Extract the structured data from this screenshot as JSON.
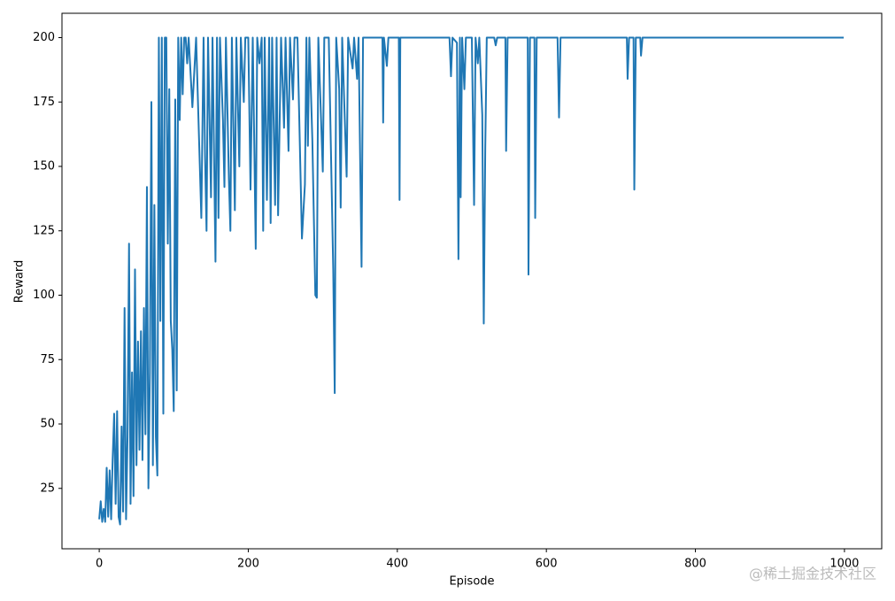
{
  "chart_data": {
    "type": "line",
    "xlabel": "Episode",
    "ylabel": "Reward",
    "watermark": "@稀土掘金技术社区",
    "xlim": [
      -50,
      1050
    ],
    "ylim": [
      1.55,
      209.45
    ],
    "xticks": [
      0,
      200,
      400,
      600,
      800,
      1000
    ],
    "yticks": [
      25,
      50,
      75,
      100,
      125,
      150,
      175,
      200
    ],
    "x": [
      0,
      2,
      4,
      6,
      8,
      10,
      12,
      14,
      16,
      18,
      20,
      22,
      24,
      26,
      28,
      30,
      32,
      34,
      36,
      38,
      40,
      42,
      44,
      46,
      48,
      50,
      52,
      54,
      56,
      58,
      60,
      62,
      64,
      66,
      68,
      70,
      72,
      74,
      76,
      78,
      80,
      82,
      84,
      86,
      88,
      90,
      92,
      94,
      96,
      98,
      100,
      102,
      104,
      106,
      108,
      110,
      112,
      114,
      116,
      118,
      120,
      125,
      130,
      134,
      137,
      140,
      142,
      144,
      146,
      150,
      152,
      156,
      158,
      160,
      162,
      166,
      168,
      170,
      174,
      176,
      178,
      182,
      184,
      188,
      190,
      194,
      196,
      200,
      203,
      206,
      210,
      212,
      215,
      218,
      220,
      222,
      225,
      228,
      230,
      232,
      236,
      238,
      240,
      244,
      248,
      250,
      254,
      256,
      260,
      262,
      266,
      272,
      276,
      278,
      280,
      282,
      286,
      290,
      292,
      294,
      300,
      302,
      308,
      314,
      316,
      318,
      322,
      324,
      326,
      332,
      334,
      340,
      342,
      346,
      348,
      352,
      354,
      380,
      381,
      382,
      386,
      388,
      402,
      403,
      404,
      470,
      472,
      474,
      480,
      482,
      484,
      485,
      487,
      490,
      492,
      500,
      503,
      505,
      508,
      510,
      514,
      516,
      518,
      520,
      530,
      532,
      534,
      545,
      546,
      548,
      575,
      576,
      578,
      584,
      585,
      587,
      615,
      617,
      619,
      708,
      709,
      711,
      717,
      718,
      720,
      726,
      727,
      729,
      999
    ],
    "series": [
      {
        "name": "Reward",
        "color": "#1f77b4",
        "values": [
          13,
          20,
          12,
          17,
          12,
          33,
          14,
          32,
          13,
          36,
          54,
          19,
          55,
          14,
          11,
          49,
          16,
          95,
          13,
          45,
          120,
          19,
          70,
          22,
          110,
          34,
          82,
          40,
          86,
          36,
          95,
          46,
          142,
          25,
          70,
          175,
          34,
          135,
          45,
          30,
          200,
          90,
          200,
          54,
          200,
          200,
          120,
          180,
          90,
          79,
          55,
          176,
          63,
          200,
          168,
          200,
          178,
          200,
          200,
          190,
          200,
          173,
          200,
          160,
          130,
          200,
          154,
          125,
          200,
          138,
          200,
          113,
          200,
          130,
          200,
          168,
          142,
          200,
          145,
          125,
          200,
          133,
          200,
          150,
          200,
          175,
          200,
          200,
          141,
          200,
          118,
          200,
          190,
          200,
          125,
          200,
          137,
          200,
          128,
          200,
          135,
          200,
          131,
          200,
          165,
          200,
          156,
          200,
          176,
          200,
          200,
          122,
          143,
          200,
          158,
          200,
          160,
          100,
          99,
          200,
          148,
          200,
          200,
          110,
          62,
          200,
          180,
          134,
          200,
          146,
          200,
          188,
          200,
          184,
          200,
          111,
          200,
          200,
          167,
          200,
          189,
          200,
          200,
          137,
          200,
          200,
          185,
          200,
          198,
          114,
          200,
          138,
          200,
          180,
          200,
          200,
          135,
          200,
          190,
          200,
          170,
          89,
          157,
          200,
          200,
          197,
          200,
          200,
          156,
          200,
          200,
          108,
          200,
          200,
          130,
          200,
          200,
          169,
          200,
          200,
          184,
          200,
          200,
          141,
          200,
          200,
          193,
          200,
          200
        ]
      }
    ]
  }
}
